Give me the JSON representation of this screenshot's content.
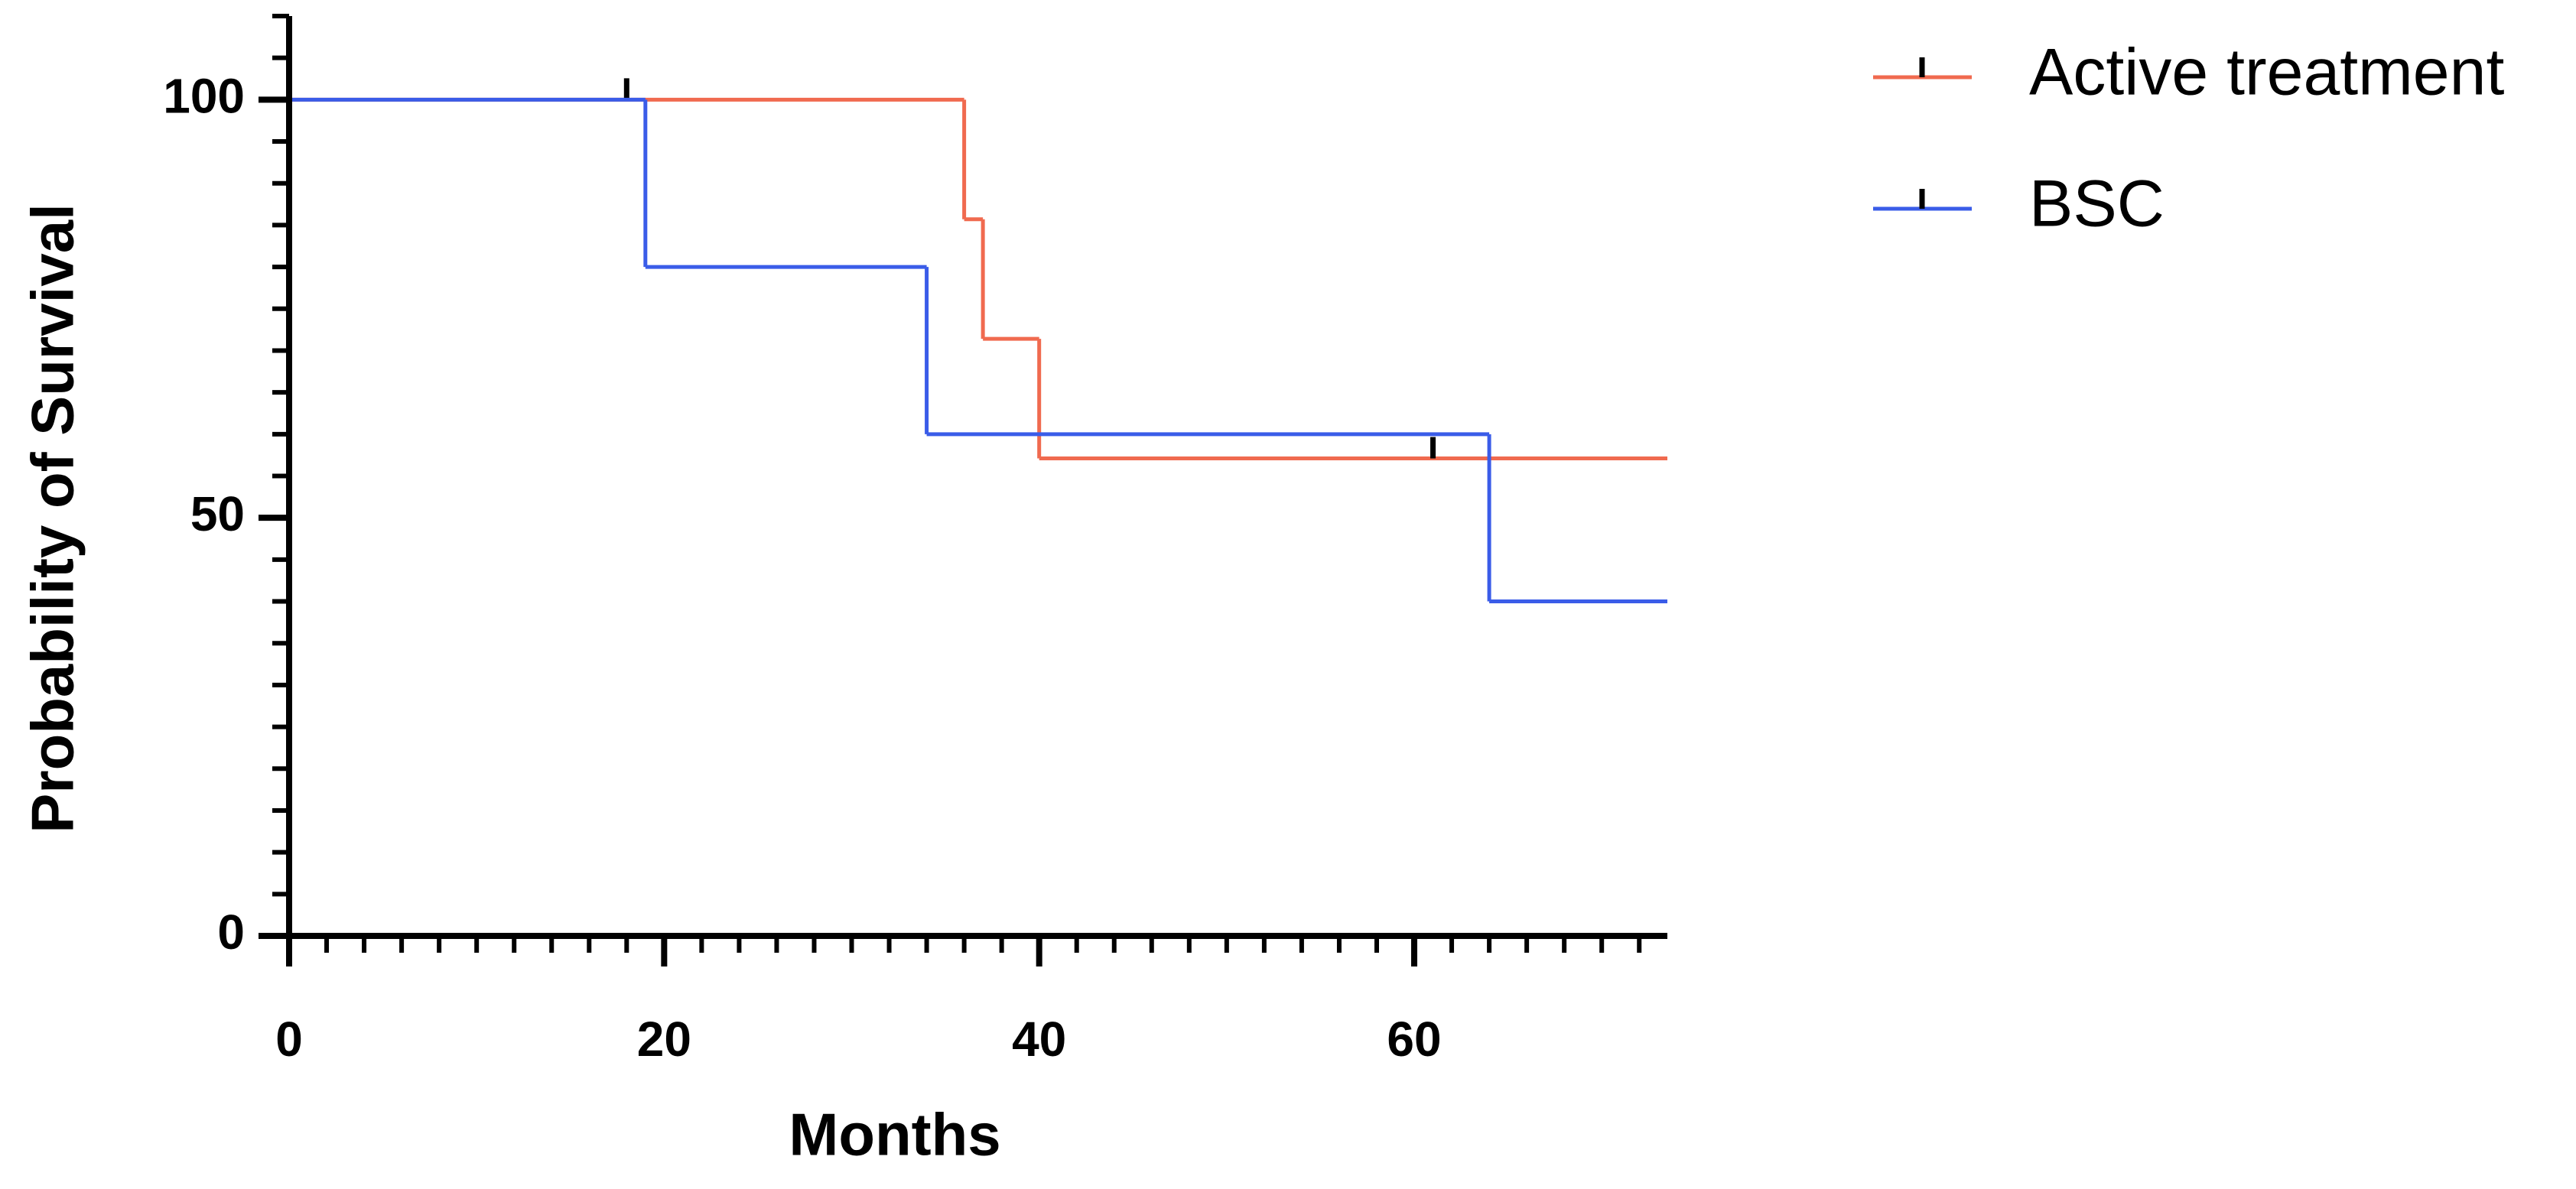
{
  "chart_data": {
    "type": "survival-step",
    "xlabel": "Months",
    "ylabel": "Probability of Survival",
    "xlim": [
      0,
      73.5
    ],
    "xticks": [
      0,
      20,
      40,
      60
    ],
    "x_minor_step": 2,
    "ylim": [
      0,
      110
    ],
    "yticks": [
      0,
      50,
      100
    ],
    "y_minor_step": 5,
    "legend": "top-right",
    "series": [
      {
        "name": "Active treatment",
        "color": "#f06a4f",
        "x": [
          0,
          36,
          37,
          40
        ],
        "values": [
          100,
          85.7,
          71.4,
          57.1
        ],
        "censor_x": [
          18,
          61
        ],
        "censor_values": [
          100,
          57.1
        ]
      },
      {
        "name": "BSC",
        "color": "#3a5ce8",
        "x": [
          0,
          19,
          34,
          64
        ],
        "values": [
          100,
          80,
          60,
          40
        ],
        "censor_x": [],
        "censor_values": []
      }
    ]
  }
}
